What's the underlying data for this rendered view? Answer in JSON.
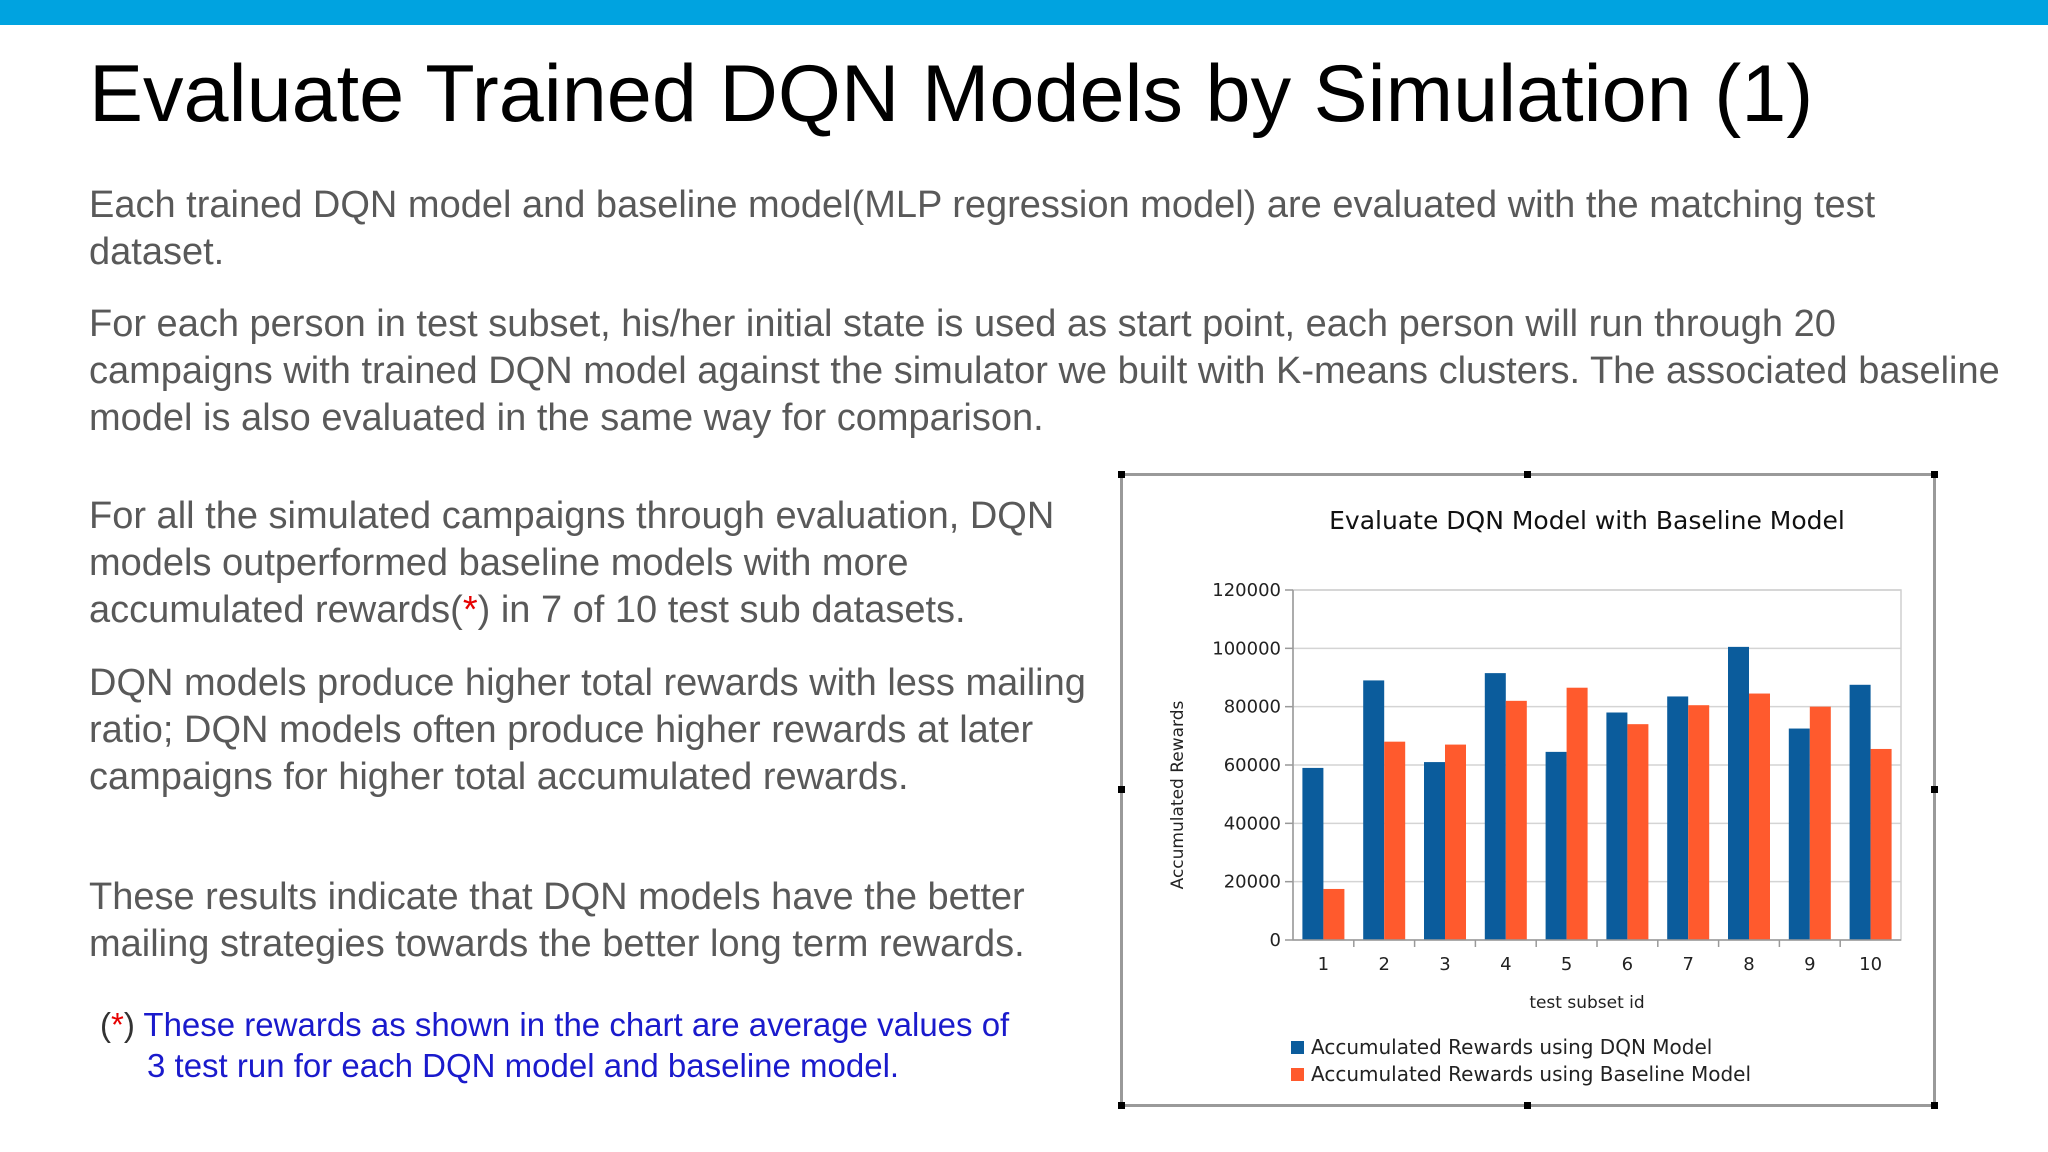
{
  "slide": {
    "accent_color": "#00a3e0",
    "title": "Evaluate Trained DQN Models by Simulation (1)",
    "paragraphs": [
      "Each trained DQN model and baseline model(MLP regression model) are evaluated with the matching test dataset.",
      "For each person in test subset, his/her initial state is used as start point, each person will run through 20 campaigns with trained DQN model against the simulator we built with K-means clusters. The associated baseline model is also evaluated in the same way for comparison."
    ],
    "left_column": {
      "p1_before": "For all the simulated campaigns through evaluation, DQN models outperformed baseline models with more accumulated rewards(",
      "p1_star": "*",
      "p1_after": ") in 7 of 10 test sub datasets.",
      "p2": "DQN models produce higher total rewards with less mailing ratio; DQN models often produce higher rewards at later campaigns for higher total accumulated rewards.",
      "p3": "These results indicate that DQN models have the better mailing strategies towards the better long term rewards."
    },
    "footnote": {
      "open": "(",
      "star": "*",
      "close": ")",
      "line1": "These rewards as shown in the chart are average values of",
      "line2": "3 test run for each DQN model and baseline model."
    }
  },
  "chart_data": {
    "type": "bar",
    "title": "Evaluate DQN Model with Baseline Model",
    "xlabel": "test subset id",
    "ylabel": "Accumulated  Rewards",
    "categories": [
      "1",
      "2",
      "3",
      "4",
      "5",
      "6",
      "7",
      "8",
      "9",
      "10"
    ],
    "ylim": [
      0,
      120000
    ],
    "yticks": [
      0,
      20000,
      40000,
      60000,
      80000,
      100000,
      120000
    ],
    "grid": true,
    "legend_position": "bottom",
    "series": [
      {
        "name": "Accumulated Rewards using DQN Model",
        "color": "#0b5c9c",
        "values": [
          59000,
          89000,
          61000,
          91500,
          64500,
          78000,
          83500,
          100500,
          72500,
          87500
        ]
      },
      {
        "name": "Accumulated Rewards using Baseline Model",
        "color": "#ff5a2d",
        "values": [
          17500,
          68000,
          67000,
          82000,
          86500,
          74000,
          80500,
          84500,
          80000,
          65500
        ]
      }
    ]
  }
}
